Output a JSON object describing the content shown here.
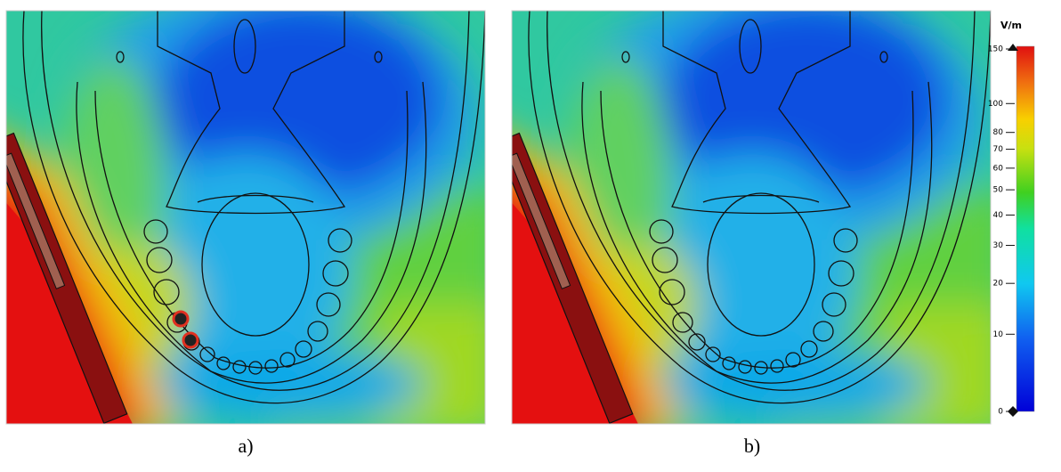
{
  "panels": [
    {
      "label": "a)"
    },
    {
      "label": "b)"
    }
  ],
  "colorbar": {
    "unit": "V/m",
    "ylim": [
      0,
      150
    ],
    "yticks": [
      150,
      100,
      80,
      70,
      60,
      50,
      40,
      30,
      20,
      10,
      0
    ]
  }
}
